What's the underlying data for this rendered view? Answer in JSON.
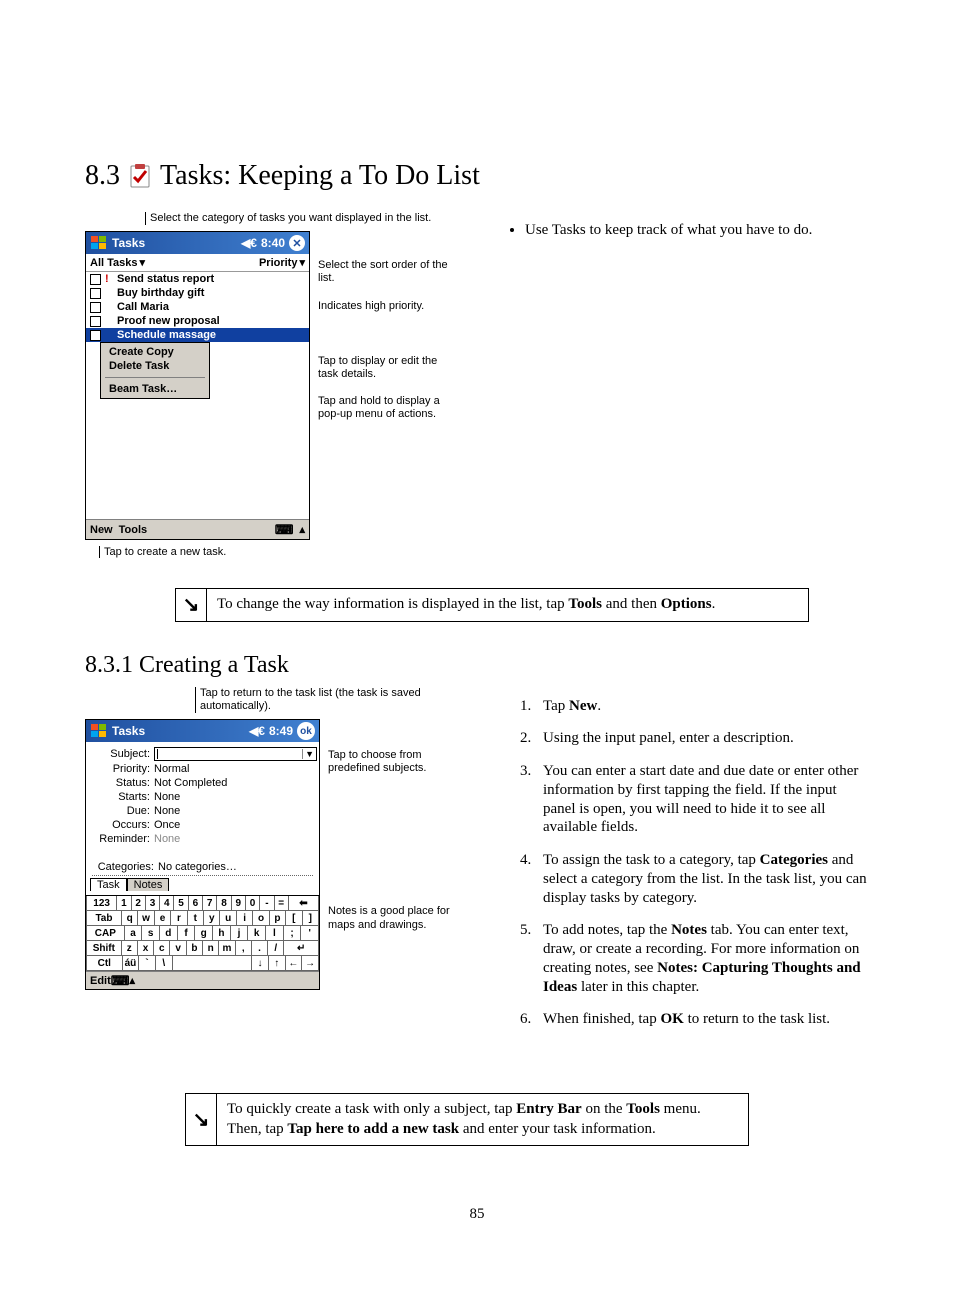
{
  "section": {
    "number": "8.3",
    "title": "Tasks: Keeping a To Do List"
  },
  "colors": {
    "titlebar_start": "#2050a0",
    "titlebar_end": "#4080d0",
    "selection": "#1040a0",
    "menu_bg": "#d4d0c8",
    "priority_red": "#c00"
  },
  "fig1": {
    "callout_top": "Select the category of tasks you want displayed in the list.",
    "title": "Tasks",
    "time": "8:40",
    "close_glyph": "✕",
    "toolbar_left": "All Tasks",
    "toolbar_right": "Priority",
    "tasks": [
      {
        "label": "Send status report",
        "priority": true
      },
      {
        "label": "Buy birthday gift",
        "priority": false
      },
      {
        "label": "Call Maria",
        "priority": false
      },
      {
        "label": "Proof new proposal",
        "priority": false
      },
      {
        "label": "Schedule massage",
        "priority": false,
        "selected": true
      }
    ],
    "popup": {
      "items": [
        "Create Copy",
        "Delete Task"
      ],
      "after_sep": "Beam Task…"
    },
    "bottombar": {
      "new": "New",
      "tools": "Tools"
    },
    "callout_bottom": "Tap to create a new task.",
    "side": [
      "Select the sort order of the list.",
      "Indicates high priority.",
      "Tap to display or edit the task details.",
      "Tap and hold to display a pop-up menu of actions."
    ]
  },
  "right_bullet": "Use Tasks to keep track of what you have to do.",
  "note1": "To change the way information is displayed in the list, tap <b>Tools</b> and then <b>Options</b>.",
  "subsection": {
    "number": "8.3.1",
    "title": "Creating a Task"
  },
  "fig2": {
    "callout_top": "Tap to return to the task list (the task is saved automatically).",
    "title": "Tasks",
    "time": "8:49",
    "ok": "ok",
    "fields": {
      "subject_lbl": "Subject:",
      "priority_lbl": "Priority:",
      "priority_val": "Normal",
      "status_lbl": "Status:",
      "status_val": "Not Completed",
      "starts_lbl": "Starts:",
      "starts_val": "None",
      "due_lbl": "Due:",
      "due_val": "None",
      "occurs_lbl": "Occurs:",
      "occurs_val": "Once",
      "reminder_lbl": "Reminder:",
      "reminder_val": "None",
      "categories_lbl": "Categories:",
      "categories_val": "No categories…"
    },
    "tabs": {
      "task": "Task",
      "notes": "Notes"
    },
    "side": [
      "Tap to choose from predefined subjects.",
      "Notes is a good place for maps and drawings."
    ],
    "kbd": {
      "r1": [
        "123",
        "1",
        "2",
        "3",
        "4",
        "5",
        "6",
        "7",
        "8",
        "9",
        "0",
        "-",
        "=",
        "⬅"
      ],
      "r2": [
        "Tab",
        "q",
        "w",
        "e",
        "r",
        "t",
        "y",
        "u",
        "i",
        "o",
        "p",
        "[",
        "]"
      ],
      "r3": [
        "CAP",
        "a",
        "s",
        "d",
        "f",
        "g",
        "h",
        "j",
        "k",
        "l",
        ";",
        "'"
      ],
      "r4": [
        "Shift",
        "z",
        "x",
        "c",
        "v",
        "b",
        "n",
        "m",
        ",",
        ".",
        "/",
        "↵"
      ],
      "r5": [
        "Ctl",
        "áü",
        "`",
        "\\",
        " ",
        "↓",
        "↑",
        "←",
        "→"
      ]
    },
    "edit": "Edit"
  },
  "steps": [
    "Tap <b>New</b>.",
    "Using the input panel, enter a description.",
    "You can enter a start date and due date or enter other information by first tapping the field. If the input panel is open, you will need to hide it to see all available fields.",
    "To assign the task to a category, tap <b>Categories</b> and select a category from the list. In the task list, you can display tasks by category.",
    "To add notes, tap the <b>Notes</b> tab. You can enter text, draw, or create a recording. For more information on creating notes, see <b>Notes: Capturing Thoughts and Ideas</b> later in this chapter.",
    "When finished, tap <b>OK</b> to return to the task list."
  ],
  "note2": "To quickly create a task with only a subject, tap <b>Entry Bar</b> on the <b>Tools</b> menu. Then, tap <b>Tap here to add a new task</b> and enter your task information.",
  "page_number": "85"
}
